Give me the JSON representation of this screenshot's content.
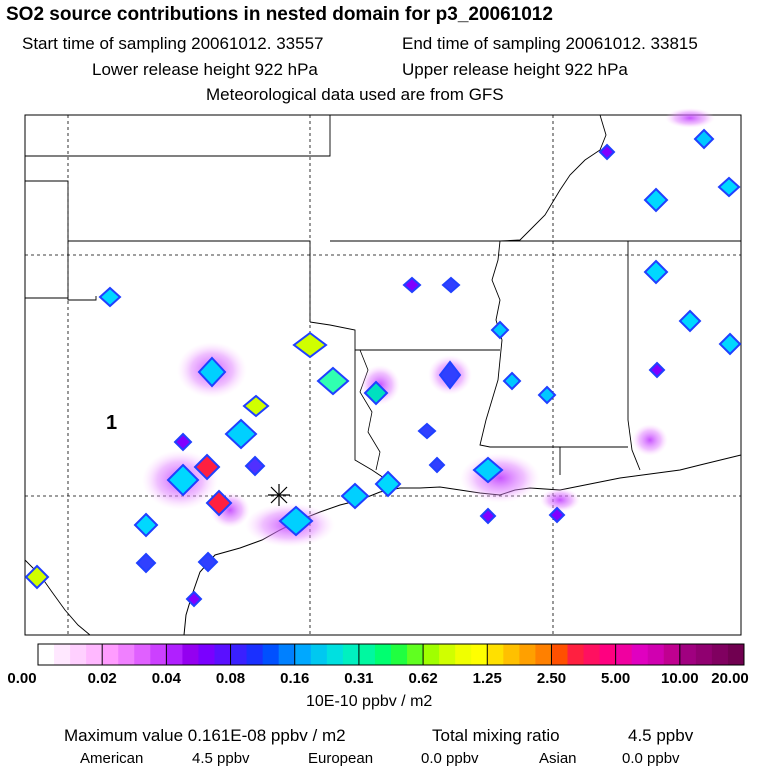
{
  "header": {
    "title": "SO2 source contributions in nested domain for p3_20061012",
    "start_time": "Start time of sampling 20061012. 33557",
    "end_time": "End time of sampling 20061012. 33815",
    "lower_release": "Lower release height  922 hPa",
    "upper_release": "Upper release height  922 hPa",
    "met_data": "Meteorological data used are from GFS"
  },
  "map": {
    "region_label": "1",
    "receptor_marker": "asterisk-icon",
    "source_plumes": [
      {
        "level": 0.161,
        "shape": "diamond"
      },
      {
        "level": 0.16,
        "shape": "diamond"
      },
      {
        "level": 0.08,
        "shape": "diamond"
      }
    ]
  },
  "legend": {
    "labels": [
      "0.00",
      "0.02",
      "0.04",
      "0.08",
      "0.16",
      "0.31",
      "0.62",
      "1.25",
      "2.50",
      "5.00",
      "10.00",
      "20.00"
    ],
    "units": "10E-10 ppbv / m2",
    "colors": [
      "#ffffff",
      "#ffe8ff",
      "#ffd0ff",
      "#ffb8ff",
      "#ff9cff",
      "#f080ff",
      "#e060ff",
      "#cc40ff",
      "#b020ff",
      "#9400f0",
      "#7a00ff",
      "#5a10ff",
      "#3a20ff",
      "#1a30ff",
      "#0050ff",
      "#0080ff",
      "#00a8ff",
      "#00c8f0",
      "#00e0e0",
      "#00f0c0",
      "#00f8a0",
      "#00ff70",
      "#20ff40",
      "#60ff20",
      "#a0ff00",
      "#d0ff00",
      "#f0ff00",
      "#ffff00",
      "#ffe000",
      "#ffc000",
      "#ffa000",
      "#ff8000",
      "#ff5000",
      "#ff2040",
      "#ff1060",
      "#ff0080",
      "#f000a0",
      "#e000c0",
      "#d000b0",
      "#c00090",
      "#a00080",
      "#900070",
      "#800060",
      "#700050"
    ]
  },
  "summary": {
    "max_label": "Maximum value  0.161E-08 ppbv / m2",
    "total_label": "Total mixing ratio",
    "total_value": "4.5 ppbv",
    "american_label": "American",
    "american_value": "4.5 ppbv",
    "european_label": "European",
    "european_value": "0.0 ppbv",
    "asian_label": "Asian",
    "asian_value": "0.0 ppbv"
  }
}
